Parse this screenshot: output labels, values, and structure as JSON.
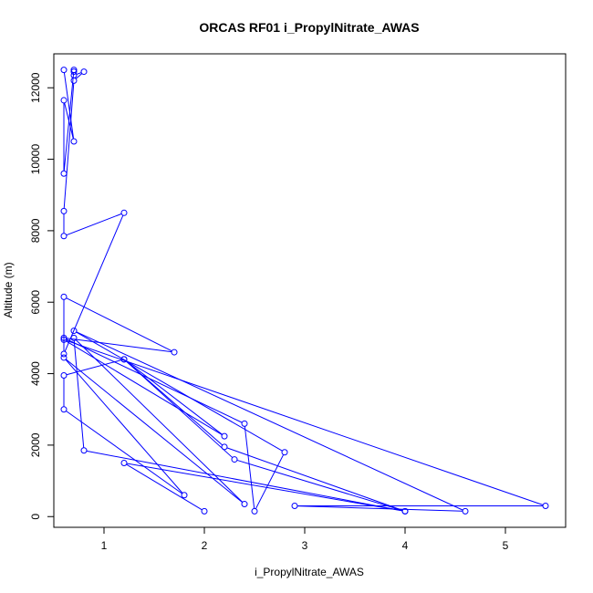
{
  "chart_data": {
    "type": "line",
    "title": "ORCAS RF01 i_PropylNitrate_AWAS",
    "xlabel": "i_PropylNitrate_AWAS",
    "ylabel": "Altitude (m)",
    "xlim": [
      0.5,
      5.6
    ],
    "ylim": [
      -300,
      12950
    ],
    "x_ticks": [
      1,
      2,
      3,
      4,
      5
    ],
    "y_ticks": [
      0,
      2000,
      4000,
      6000,
      8000,
      10000,
      12000
    ],
    "x_tick_labels": [
      "1",
      "2",
      "3",
      "4",
      "5"
    ],
    "y_tick_labels": [
      "0",
      "2000",
      "4000",
      "6000",
      "8000",
      "10000",
      "12000"
    ],
    "grid": false,
    "marker": "open-circle",
    "color": "#0000ff",
    "series": [
      {
        "points": [
          {
            "x": 0.6,
            "y": 12500
          },
          {
            "x": 0.7,
            "y": 10500
          },
          {
            "x": 0.6,
            "y": 11650
          },
          {
            "x": 0.6,
            "y": 9600
          },
          {
            "x": 0.7,
            "y": 12500
          },
          {
            "x": 0.7,
            "y": 12450
          },
          {
            "x": 0.7,
            "y": 12350
          },
          {
            "x": 0.8,
            "y": 12450
          },
          {
            "x": 0.7,
            "y": 12200
          },
          {
            "x": 0.6,
            "y": 8550
          },
          {
            "x": 0.6,
            "y": 7850
          },
          {
            "x": 1.2,
            "y": 8500
          },
          {
            "x": 0.6,
            "y": 4550
          },
          {
            "x": 0.6,
            "y": 6150
          },
          {
            "x": 1.7,
            "y": 4600
          },
          {
            "x": 0.6,
            "y": 5000
          },
          {
            "x": 2.4,
            "y": 2600
          },
          {
            "x": 2.5,
            "y": 150
          },
          {
            "x": 2.8,
            "y": 1800
          },
          {
            "x": 0.7,
            "y": 5200
          },
          {
            "x": 4.6,
            "y": 150
          },
          {
            "x": 2.9,
            "y": 300
          },
          {
            "x": 5.4,
            "y": 300
          },
          {
            "x": 0.6,
            "y": 4950
          },
          {
            "x": 2.2,
            "y": 2250
          },
          {
            "x": 1.2,
            "y": 4400
          },
          {
            "x": 2.3,
            "y": 1600
          },
          {
            "x": 4.0,
            "y": 150
          },
          {
            "x": 2.2,
            "y": 1950
          },
          {
            "x": 1.2,
            "y": 4400
          },
          {
            "x": 0.6,
            "y": 3950
          },
          {
            "x": 0.6,
            "y": 3000
          },
          {
            "x": 1.8,
            "y": 600
          },
          {
            "x": 0.6,
            "y": 4450
          },
          {
            "x": 2.4,
            "y": 350
          },
          {
            "x": 0.7,
            "y": 5000
          },
          {
            "x": 0.8,
            "y": 1850
          },
          {
            "x": 4.0,
            "y": 150
          },
          {
            "x": 1.2,
            "y": 1500
          },
          {
            "x": 2.0,
            "y": 150
          }
        ]
      }
    ]
  }
}
